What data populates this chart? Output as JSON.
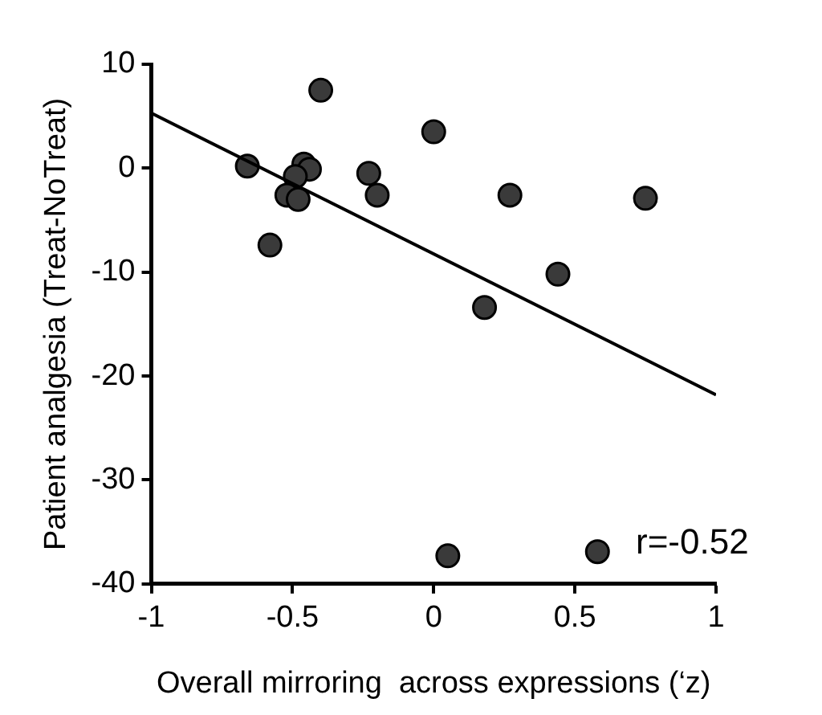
{
  "chart_data": {
    "type": "scatter",
    "xlabel": "Overall mirroring  across expressions (‘z)",
    "ylabel": "Patient analgesia (Treat-NoTreat)",
    "xlim": [
      -1,
      1
    ],
    "xticks": [
      -1,
      -0.5,
      0,
      0.5,
      1
    ],
    "ylim": [
      -40,
      10
    ],
    "yticks": [
      -40,
      -30,
      -20,
      -10,
      0,
      10
    ],
    "grid": false,
    "legend": false,
    "marker": "circle",
    "annotations": [
      "r=-0.52"
    ],
    "series": [
      {
        "color": "#3a3a3a",
        "x": [
          -0.66,
          -0.46,
          -0.44,
          -0.49,
          -0.52,
          -0.48,
          -0.58,
          -0.4,
          -0.23,
          -0.2,
          0,
          0.27,
          0.75,
          0.44,
          0.18,
          0.05,
          0.58
        ],
        "values": [
          0.2,
          0.4,
          -0.1,
          -0.8,
          -2.6,
          -3.0,
          -7.4,
          7.5,
          -0.5,
          -2.6,
          3.5,
          -2.6,
          -2.9,
          -10.2,
          -13.4,
          -37.3,
          -36.9
        ]
      },
      {
        "type": "line",
        "color": "#000000",
        "marker": "none",
        "x": [
          -1,
          1
        ],
        "values": [
          5.3,
          -21.8
        ]
      }
    ]
  }
}
